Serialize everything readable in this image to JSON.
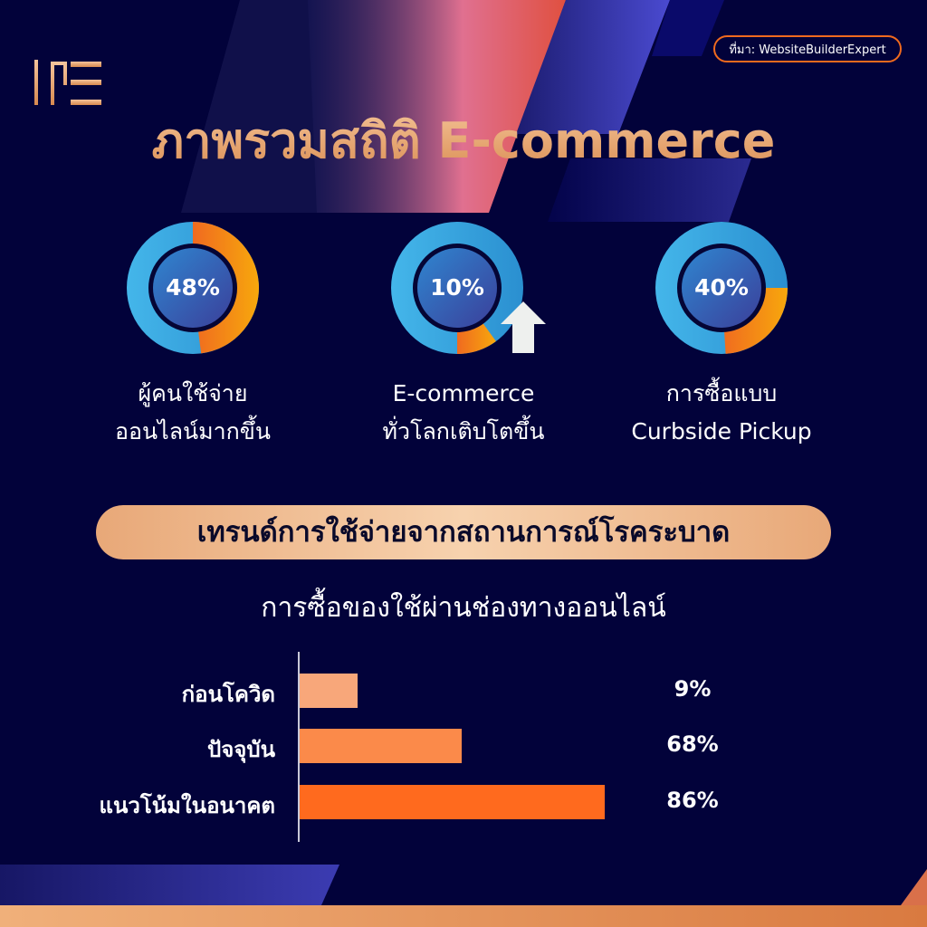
{
  "source_label": "ที่มา: WebsiteBuilderExpert",
  "title": "ภาพรวมสถิติ E-commerce",
  "colors": {
    "background": "#02023a",
    "accent_orange": "#f49a14",
    "ring_blue": "#3aa8e0",
    "bar_light": "#f8a77a",
    "bar_mid": "#fb8a4a",
    "bar_dark": "#ff6a1e"
  },
  "stats": [
    {
      "percent_label": "48%",
      "value": 48,
      "caption_line1": "ผู้คนใช้จ่าย",
      "caption_line2": "ออนไลน์มากขึ้น"
    },
    {
      "percent_label": "10%",
      "value": 10,
      "caption_line1": "E-commerce",
      "caption_line2": "ทั่วโลกเติบโตขึ้น",
      "icon": "arrow-up-icon"
    },
    {
      "percent_label": "40%",
      "value": 40,
      "caption_line1": "การซื้อแบบ",
      "caption_line2": "Curbside Pickup"
    }
  ],
  "section_heading": "เทรนด์การใช้จ่ายจากสถานการณ์โรคระบาด",
  "chart_data": {
    "type": "bar",
    "orientation": "horizontal",
    "title": "การซื้อของใช้ผ่านช่องทางออนไลน์",
    "categories": [
      "ก่อนโควิด",
      "ปัจจุบัน",
      "แนวโน้มในอนาคต"
    ],
    "values": [
      9,
      68,
      86
    ],
    "value_labels": [
      "9%",
      "68%",
      "86%"
    ],
    "grid": false
  }
}
